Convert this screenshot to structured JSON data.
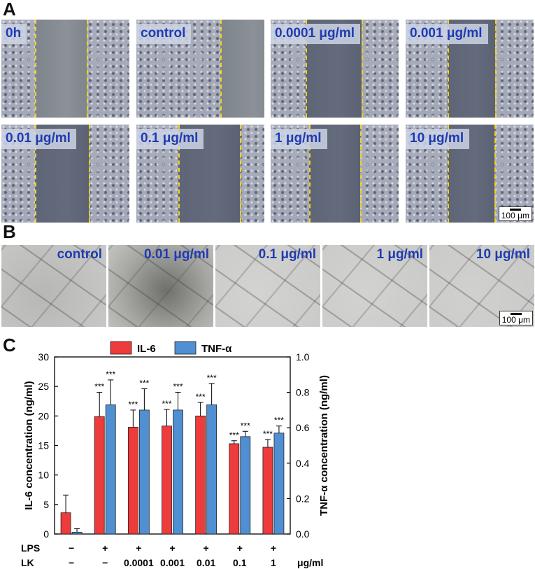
{
  "panels": {
    "a": "A",
    "b": "B",
    "c": "C"
  },
  "migration": {
    "labels": [
      "0h",
      "control",
      "0.0001 μg/ml",
      "0.001 μg/ml",
      "0.01 μg/ml",
      "0.1 μg/ml",
      "1 μg/ml",
      "10 μg/ml"
    ],
    "scale_bar": "100 μm"
  },
  "tube_formation": {
    "labels": [
      "control",
      "0.01 μg/ml",
      "0.1 μg/ml",
      "1 μg/ml",
      "10 μg/ml"
    ],
    "scale_bar": "100 μm"
  },
  "chart_data": {
    "type": "bar",
    "legend": [
      "IL-6",
      "TNF-α"
    ],
    "ylabel_left": "IL-6 concentration (ng/ml)",
    "ylabel_right": "TNF-α concentration (ng/ml)",
    "ylim_left": [
      0,
      30
    ],
    "ylim_right": [
      0,
      1.0
    ],
    "yticks_left": [
      "0",
      "5",
      "10",
      "15",
      "20",
      "25",
      "30"
    ],
    "yticks_right": [
      "0.0",
      "0.2",
      "0.4",
      "0.6",
      "0.8",
      "1.0"
    ],
    "row_labels": [
      "LPS",
      "LK"
    ],
    "lps": [
      "−",
      "+",
      "+",
      "+",
      "+",
      "+",
      "+"
    ],
    "lk": [
      "−",
      "−",
      "0.0001",
      "0.001",
      "0.01",
      "0.1",
      "1"
    ],
    "unit": "μg/ml",
    "series": [
      {
        "name": "IL-6",
        "axis": "left",
        "color": "#ee3b3b",
        "values": [
          3.6,
          19.9,
          18.1,
          18.3,
          20.0,
          15.3,
          14.7
        ],
        "errors": [
          3.0,
          4.1,
          2.9,
          2.8,
          2.3,
          0.5,
          1.3
        ],
        "significance": [
          "",
          "***",
          "***",
          "***",
          "***",
          "***",
          "***"
        ]
      },
      {
        "name": "TNF-α",
        "axis": "right",
        "color": "#4f8fd2",
        "values": [
          0.01,
          0.73,
          0.7,
          0.7,
          0.73,
          0.55,
          0.57
        ],
        "errors": [
          0.02,
          0.14,
          0.12,
          0.1,
          0.12,
          0.03,
          0.04
        ],
        "significance": [
          "",
          "***",
          "***",
          "***",
          "***",
          "***",
          "***"
        ]
      }
    ]
  },
  "colors": {
    "label_blue": "#1f3bb3",
    "marker_yellow": "#f2d21a"
  }
}
